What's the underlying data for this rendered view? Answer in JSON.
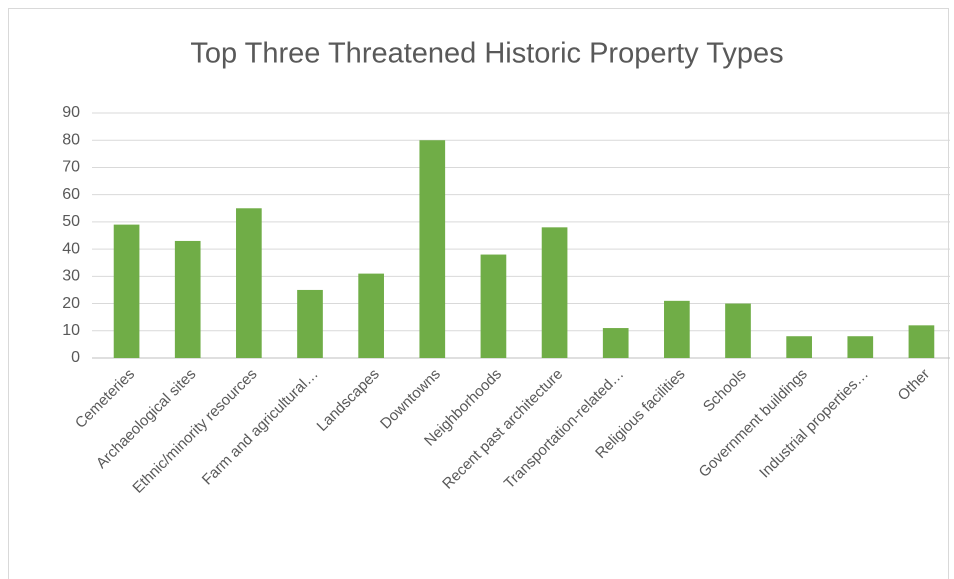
{
  "chart_data": {
    "type": "bar",
    "title": "Top Three Threatened Historic Property Types",
    "categories": [
      "Cemeteries",
      "Archaeological sites",
      "Ethnic/minority resources",
      "Farm and agricultural…",
      "Landscapes",
      "Downtowns",
      "Neighborhoods",
      "Recent past architecture",
      "Transportation-related…",
      "Religious facilities",
      "Schools",
      "Government buildings",
      "Industrial properties…",
      "Other"
    ],
    "values": [
      49,
      43,
      55,
      25,
      31,
      80,
      38,
      48,
      11,
      21,
      20,
      8,
      8,
      12
    ],
    "color": "#70ad47",
    "ylim": [
      0,
      90
    ],
    "yticks": [
      0,
      10,
      20,
      30,
      40,
      50,
      60,
      70,
      80,
      90
    ],
    "grid": true
  }
}
